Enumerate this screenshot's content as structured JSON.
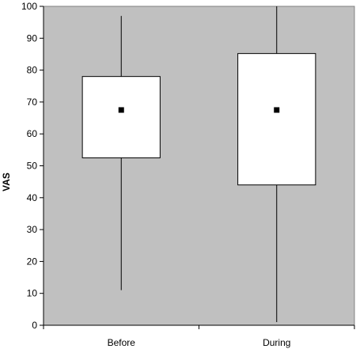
{
  "chart_data": {
    "type": "box",
    "title": "",
    "xlabel": "",
    "ylabel": "VAS",
    "ylim": [
      0,
      100
    ],
    "yticks": [
      0,
      10,
      20,
      30,
      40,
      50,
      60,
      70,
      80,
      90,
      100
    ],
    "grid": false,
    "categories": [
      "Before",
      "During"
    ],
    "boxes": [
      {
        "category": "Before",
        "min": 11,
        "q1": 52.5,
        "q3": 78,
        "max": 97,
        "mean": 67.5
      },
      {
        "category": "During",
        "min": 1,
        "q1": 44,
        "q3": 85.2,
        "max": 100,
        "mean": 67.5
      }
    ],
    "colors": {
      "plot_background": "#c0c0c0",
      "box_fill": "#ffffff",
      "line": "#000000",
      "mean_marker": "#000000"
    }
  }
}
